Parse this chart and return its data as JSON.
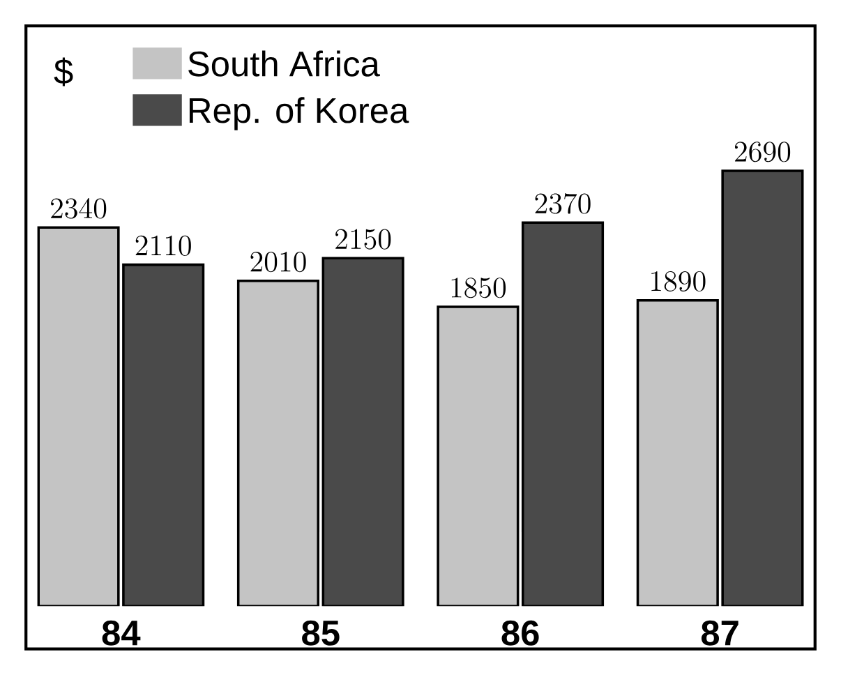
{
  "chart_data": {
    "type": "bar",
    "ylabel": "$",
    "categories": [
      "84",
      "85",
      "86",
      "87"
    ],
    "series": [
      {
        "name": "South Africa",
        "color": "#c4c4c4",
        "values": [
          2340,
          2010,
          1850,
          1890
        ]
      },
      {
        "name": "Rep. of Korea",
        "color": "#4a4a4a",
        "values": [
          2110,
          2150,
          2370,
          2690
        ]
      }
    ],
    "data_labels": true,
    "legend": "top left"
  }
}
